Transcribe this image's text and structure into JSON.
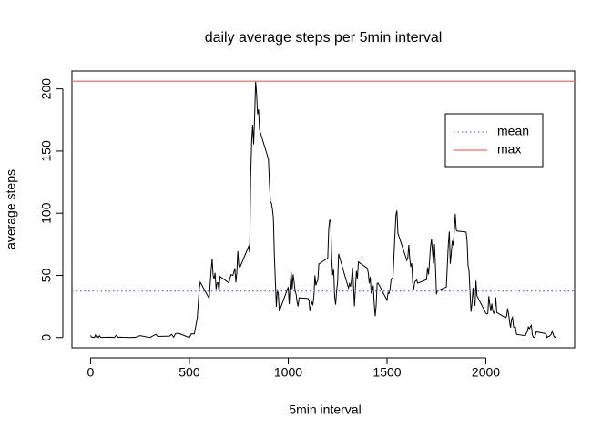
{
  "chart_data": {
    "type": "line",
    "title": "daily average steps per 5min interval",
    "x_label": "5min interval",
    "y_label": "average steps",
    "color": "#000000",
    "x": [
      0,
      5,
      10,
      15,
      20,
      25,
      30,
      35,
      40,
      45,
      50,
      55,
      100,
      110,
      120,
      130,
      140,
      150,
      200,
      215,
      225,
      250,
      300,
      330,
      340,
      400,
      410,
      420,
      430,
      440,
      450,
      500,
      510,
      525,
      540,
      550,
      555,
      600,
      610,
      615,
      620,
      625,
      630,
      635,
      640,
      645,
      650,
      655,
      700,
      710,
      720,
      730,
      735,
      740,
      745,
      750,
      755,
      800,
      805,
      810,
      815,
      820,
      825,
      830,
      835,
      840,
      845,
      850,
      855,
      900,
      905,
      910,
      915,
      920,
      925,
      930,
      935,
      940,
      945,
      950,
      955,
      1000,
      1005,
      1010,
      1015,
      1020,
      1025,
      1030,
      1035,
      1040,
      1045,
      1050,
      1055,
      1100,
      1105,
      1110,
      1115,
      1120,
      1125,
      1130,
      1135,
      1140,
      1145,
      1150,
      1155,
      1200,
      1205,
      1210,
      1215,
      1220,
      1225,
      1230,
      1235,
      1240,
      1245,
      1250,
      1255,
      1300,
      1305,
      1310,
      1315,
      1320,
      1325,
      1330,
      1335,
      1340,
      1345,
      1350,
      1355,
      1400,
      1405,
      1410,
      1415,
      1420,
      1425,
      1430,
      1435,
      1440,
      1445,
      1450,
      1455,
      1500,
      1505,
      1510,
      1515,
      1520,
      1525,
      1530,
      1535,
      1540,
      1545,
      1550,
      1555,
      1600,
      1605,
      1610,
      1615,
      1620,
      1625,
      1630,
      1635,
      1640,
      1645,
      1650,
      1655,
      1700,
      1705,
      1710,
      1715,
      1720,
      1725,
      1730,
      1735,
      1740,
      1745,
      1750,
      1755,
      1800,
      1805,
      1810,
      1815,
      1820,
      1825,
      1830,
      1835,
      1840,
      1845,
      1850,
      1855,
      1900,
      1905,
      1910,
      1915,
      1920,
      1925,
      1930,
      1935,
      1940,
      1945,
      1950,
      1955,
      2000,
      2005,
      2010,
      2015,
      2020,
      2025,
      2030,
      2035,
      2040,
      2045,
      2050,
      2055,
      2100,
      2105,
      2110,
      2115,
      2120,
      2125,
      2130,
      2135,
      2140,
      2145,
      2150,
      2155,
      2200,
      2205,
      2210,
      2215,
      2220,
      2225,
      2230,
      2235,
      2240,
      2245,
      2250,
      2255,
      2300,
      2305,
      2310,
      2315,
      2320,
      2325,
      2330,
      2335,
      2340,
      2345,
      2350,
      2355
    ],
    "values": [
      1.7,
      0.3,
      0.1,
      0.2,
      0.1,
      2.1,
      0.5,
      0.9,
      0,
      1.5,
      0.3,
      0.1,
      0.3,
      0.2,
      0,
      1.8,
      0.2,
      0.3,
      0,
      0.2,
      0.1,
      1.5,
      0,
      2.6,
      0.9,
      1.2,
      2.6,
      0.3,
      3.1,
      3.5,
      3.1,
      0,
      3.0,
      2.9,
      16,
      39.5,
      44.5,
      31.5,
      53.8,
      63.5,
      50,
      47,
      52,
      39,
      44,
      44,
      37,
      49,
      44,
      50.5,
      49.9,
      55.7,
      44.3,
      52.3,
      69.5,
      57.8,
      56.2,
      73.4,
      68.2,
      129.4,
      157.5,
      171.2,
      155.4,
      177.3,
      206.2,
      195.9,
      179.6,
      183.4,
      167,
      143.5,
      124,
      109.1,
      108.1,
      103.7,
      95.97,
      66.2,
      45.2,
      24.8,
      38.8,
      34.98,
      21.1,
      40.6,
      26.9,
      42.4,
      52.7,
      38.9,
      50.8,
      44.3,
      37.4,
      34.7,
      28.3,
      25.1,
      31.9,
      31.4,
      29.7,
      21.3,
      25.5,
      28.4,
      26.5,
      33.4,
      49.98,
      42,
      44.6,
      46,
      59.2,
      63.9,
      87.7,
      94.8,
      92.8,
      63.4,
      50.2,
      54.5,
      32.4,
      26.5,
      37.7,
      45.1,
      67.3,
      42.3,
      39.9,
      43.3,
      40.98,
      46.2,
      56.4,
      42.8,
      25.1,
      39.97,
      53.5,
      47.3,
      60.8,
      55.8,
      51.96,
      43.6,
      48.7,
      35.5,
      37.5,
      41.8,
      27.5,
      17.1,
      26.1,
      43.6,
      43.8,
      30,
      36.1,
      35.5,
      38.8,
      45.96,
      47.8,
      48.1,
      65.3,
      82.9,
      98.7,
      102.1,
      83.96,
      62.1,
      64.1,
      74.5,
      63.2,
      56.9,
      59.8,
      43.9,
      38.6,
      44.7,
      45.5,
      46.2,
      43.7,
      46.6,
      56.3,
      50.7,
      61.2,
      73.4,
      79.1,
      68.9,
      59.7,
      75.1,
      56.5,
      34.8,
      37.5,
      40.7,
      58,
      74.7,
      85.3,
      59.3,
      67.8,
      77.7,
      74.2,
      85.3,
      99.5,
      86.6,
      85.6,
      84.9,
      77.8,
      58,
      53.4,
      36.3,
      20.7,
      27.4,
      40,
      30.2,
      25.5,
      45.7,
      33.5,
      19.6,
      19,
      19.3,
      33.3,
      26.8,
      21.2,
      27.3,
      21.3,
      19.5,
      21.3,
      32.3,
      20.2,
      15.9,
      17.2,
      23.5,
      19.2,
      12.5,
      8,
      14.7,
      16.3,
      8.7,
      7.8,
      8.1,
      2.6,
      1.5,
      3.7,
      4.8,
      8.5,
      7.1,
      8.7,
      9.8,
      2.2,
      0.3,
      0.1,
      1.6,
      4.6,
      3.3,
      2.8,
      0,
      0.8,
      0.96,
      1.6,
      2.6,
      4.7,
      3.3,
      0.6,
      0.2,
      1.1
    ],
    "hlines": [
      {
        "name": "mean",
        "color": "#6b6bff",
        "style": "dotted",
        "value": 37.38
      },
      {
        "name": "max",
        "color": "#ff6b6b",
        "style": "solid",
        "value": 206.17
      }
    ],
    "xlim": [
      -94.2,
      2449.2
    ],
    "xticks": [
      0,
      500,
      1000,
      1500,
      2000
    ],
    "ylim": [
      -8.25,
      214.4
    ],
    "yticks": [
      0,
      50,
      100,
      150,
      200
    ],
    "legend": "top-right"
  }
}
